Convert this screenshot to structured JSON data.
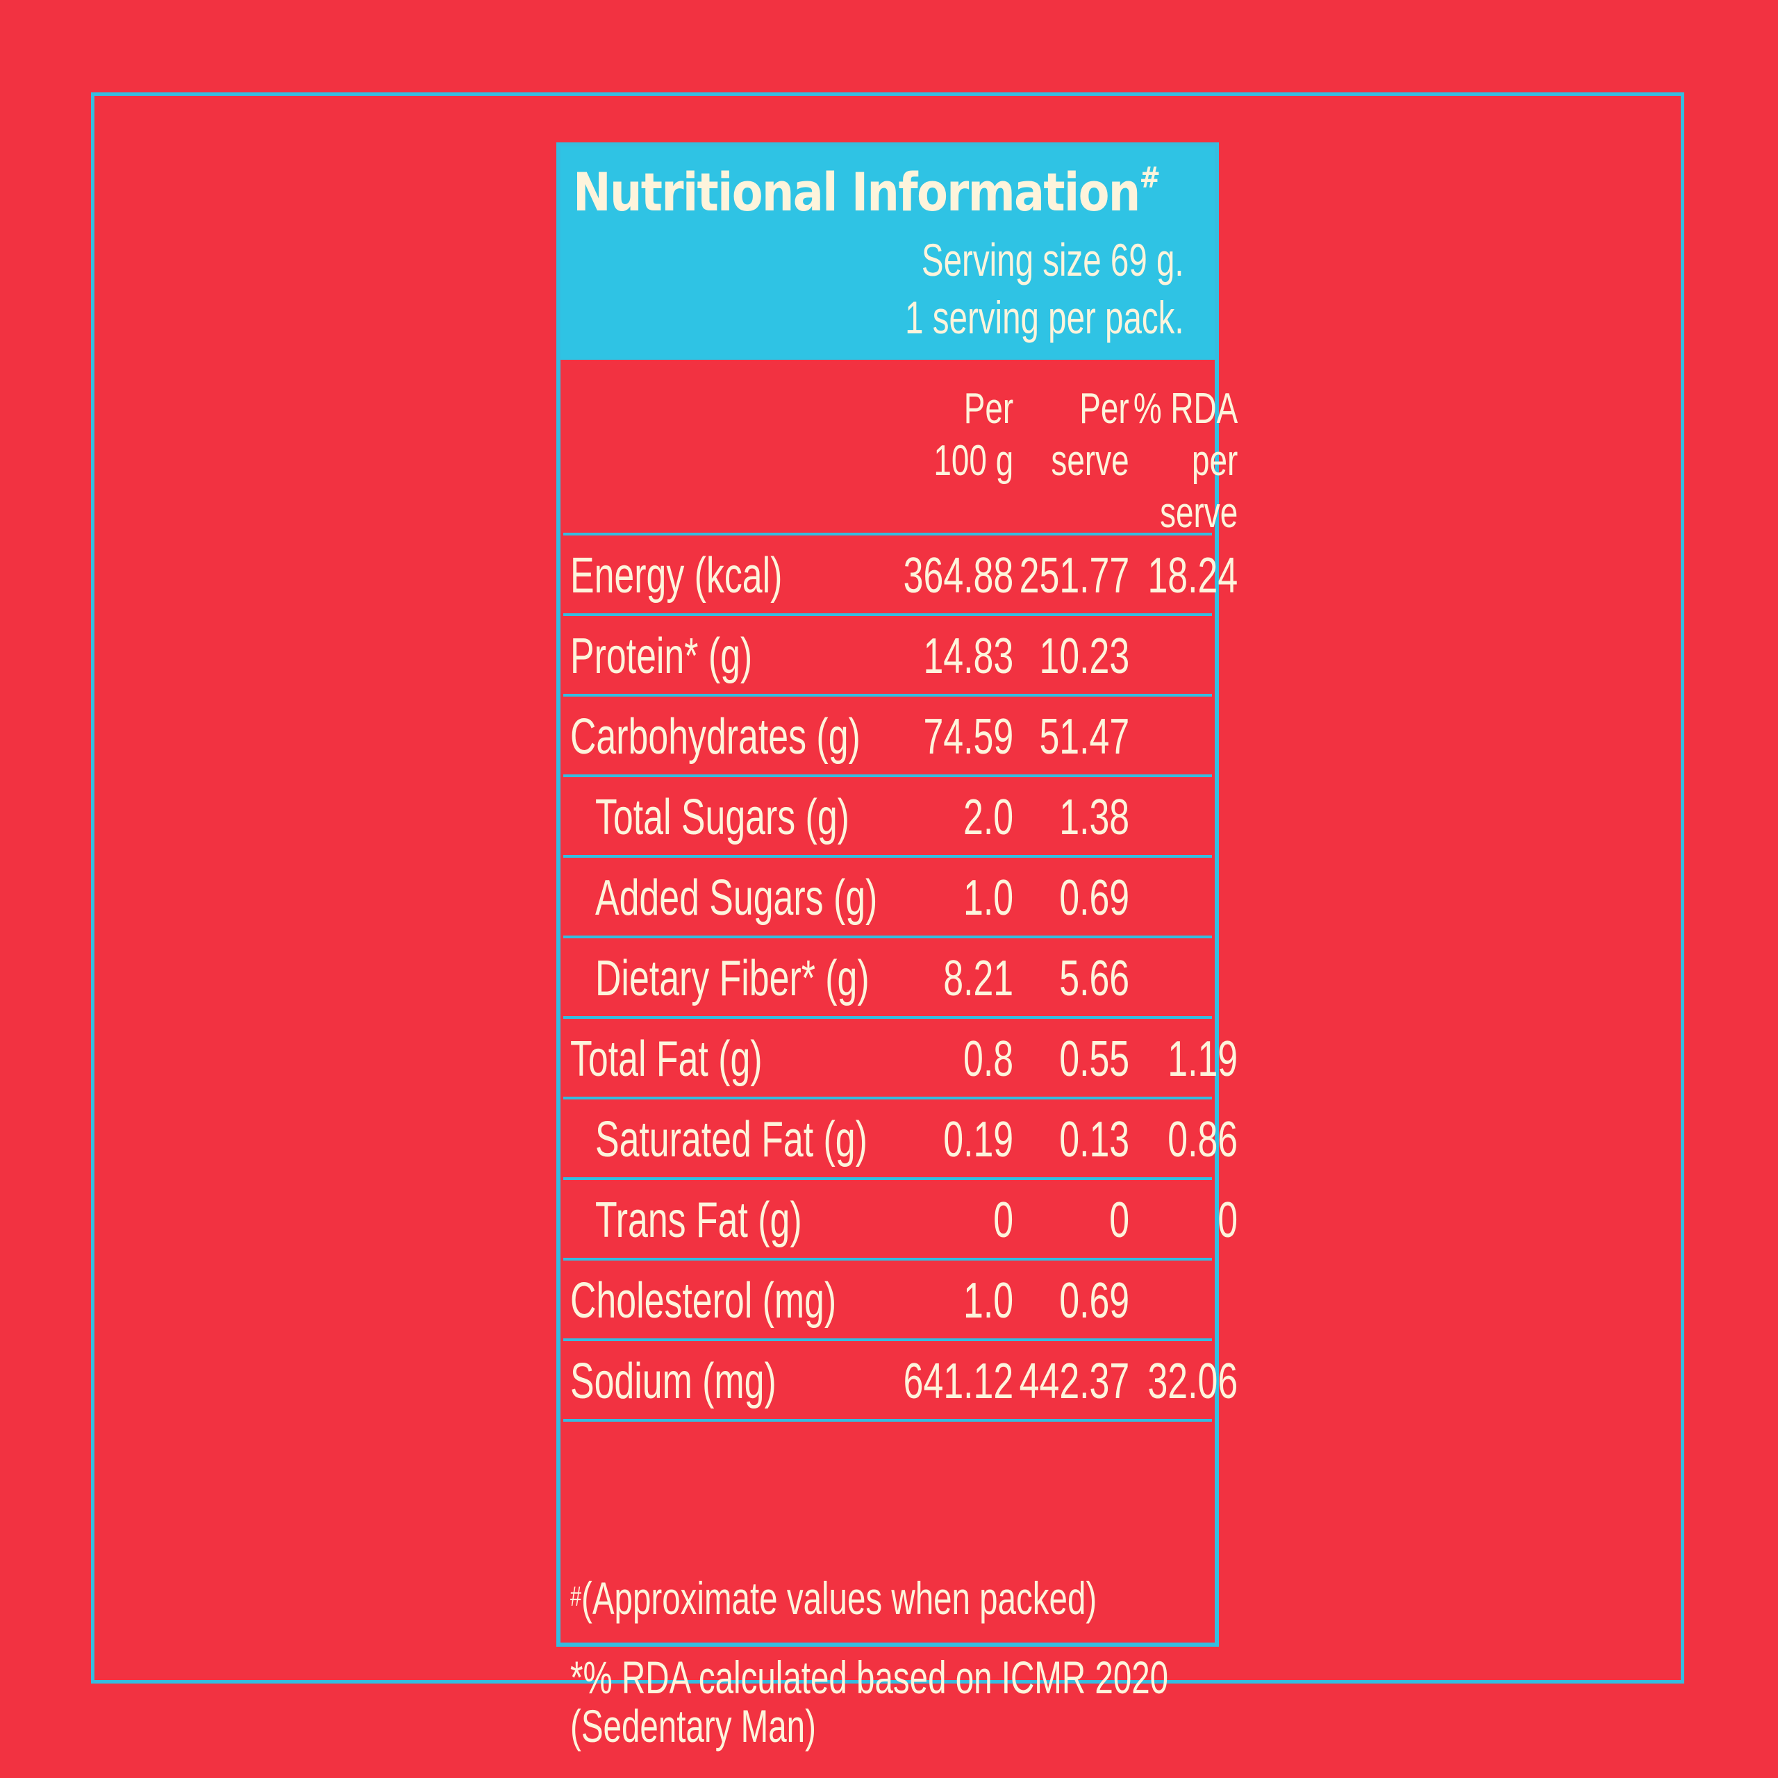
{
  "header": {
    "title": "Nutritional Information",
    "title_mark": "#",
    "serving_size": "Serving size 69 g.",
    "servings_per_pack": "1 serving per pack."
  },
  "columns": [
    {
      "line1": "Per",
      "line2": "100 g",
      "line3": ""
    },
    {
      "line1": "Per",
      "line2": "serve",
      "line3": ""
    },
    {
      "line1": "% RDA",
      "line2": "per",
      "line3": "serve"
    }
  ],
  "rows": [
    {
      "name": "Energy (kcal)",
      "indent": false,
      "per100": "364.88",
      "perServe": "251.77",
      "rda": "18.24"
    },
    {
      "name": "Protein* (g)",
      "indent": false,
      "per100": "14.83",
      "perServe": "10.23",
      "rda": ""
    },
    {
      "name": "Carbohydrates (g)",
      "indent": false,
      "per100": "74.59",
      "perServe": "51.47",
      "rda": ""
    },
    {
      "name": "Total Sugars (g)",
      "indent": true,
      "per100": "2.0",
      "perServe": "1.38",
      "rda": ""
    },
    {
      "name": "Added Sugars (g)",
      "indent": true,
      "per100": "1.0",
      "perServe": "0.69",
      "rda": ""
    },
    {
      "name": "Dietary Fiber* (g)",
      "indent": true,
      "per100": "8.21",
      "perServe": "5.66",
      "rda": ""
    },
    {
      "name": "Total Fat (g)",
      "indent": false,
      "per100": "0.8",
      "perServe": "0.55",
      "rda": "1.19"
    },
    {
      "name": "Saturated Fat (g)",
      "indent": true,
      "per100": "0.19",
      "perServe": "0.13",
      "rda": "0.86"
    },
    {
      "name": "Trans Fat (g)",
      "indent": true,
      "per100": "0",
      "perServe": "0",
      "rda": "0"
    },
    {
      "name": "Cholesterol (mg)",
      "indent": false,
      "per100": "1.0",
      "perServe": "0.69",
      "rda": ""
    },
    {
      "name": "Sodium (mg)",
      "indent": false,
      "per100": "641.12",
      "perServe": "442.37",
      "rda": "32.06"
    }
  ],
  "footnotes": {
    "note1_mark": "#",
    "note1_text": "(Approximate values when packed)",
    "note2_line1": "*% RDA calculated based on ICMR 2020",
    "note2_line2": "(Sedentary Man)"
  },
  "colors": {
    "background": "#f23241",
    "accent": "#2fc3e4",
    "text": "#fdf4dc"
  }
}
